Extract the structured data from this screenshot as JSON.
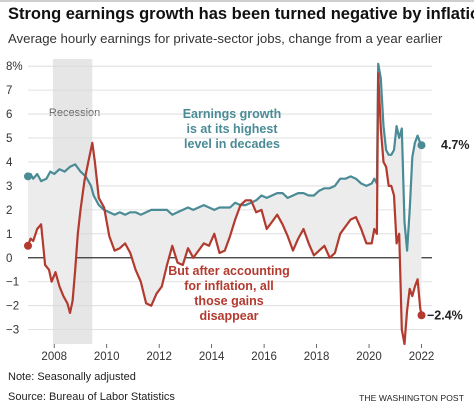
{
  "header": {
    "title": "Strong earnings growth has been turned negative by inflation",
    "subtitle": "Average hourly earnings for private-sector jobs, change from a year earlier"
  },
  "footer": {
    "note": "Note: Seasonally adjusted",
    "source": "Source: Bureau of Labor Statistics",
    "brand": "THE WASHINGTON POST"
  },
  "chart_data": {
    "type": "line",
    "title": "Strong earnings growth has been turned negative by inflation",
    "subtitle": "Average hourly earnings for private-sector jobs, change from a year earlier",
    "xlabel": "",
    "ylabel": "",
    "xlim": [
      2007.0,
      2022.4
    ],
    "ylim": [
      -3.6,
      8.3
    ],
    "y_ticks": [
      -3,
      -2,
      -1,
      0,
      1,
      2,
      3,
      4,
      5,
      6,
      7,
      8
    ],
    "y_tick_labels": [
      "−3",
      "−2",
      "−1",
      "0",
      "1",
      "2",
      "3",
      "4",
      "5",
      "6",
      "7",
      "8%"
    ],
    "x_ticks": [
      2008,
      2010,
      2012,
      2014,
      2016,
      2018,
      2020,
      2022
    ],
    "x_tick_labels": [
      "2008",
      "2010",
      "2012",
      "2014",
      "2016",
      "2018",
      "2020",
      "2022"
    ],
    "grid": true,
    "colors": {
      "nominal": "#4a8b96",
      "real": "#b23a2e",
      "recession": "#e6e6e6",
      "fill": "#ececec",
      "grid": "#d8d8d8",
      "zero_line": "#333333"
    },
    "recession": {
      "label": "Recession",
      "start": 2007.95,
      "end": 2009.45
    },
    "annotations": [
      {
        "id": "nominal",
        "lines": [
          "Earnings growth",
          "is at its highest",
          "level in decades"
        ]
      },
      {
        "id": "real",
        "lines": [
          "But after accounting",
          "for inflation, all",
          "those gains",
          "disappear"
        ]
      }
    ],
    "end_labels": {
      "nominal": "4.7%",
      "real": "−2.4%"
    },
    "series": [
      {
        "key": "nominal",
        "x": [
          2007.0,
          2007.1,
          2007.2,
          2007.35,
          2007.5,
          2007.7,
          2007.85,
          2008.0,
          2008.2,
          2008.4,
          2008.6,
          2008.8,
          2009.0,
          2009.2,
          2009.4,
          2009.5,
          2009.7,
          2009.9,
          2010.1,
          2010.3,
          2010.5,
          2010.7,
          2010.9,
          2011.1,
          2011.3,
          2011.5,
          2011.7,
          2011.9,
          2012.1,
          2012.3,
          2012.5,
          2012.7,
          2012.9,
          2013.1,
          2013.3,
          2013.5,
          2013.7,
          2013.9,
          2014.1,
          2014.3,
          2014.5,
          2014.7,
          2014.9,
          2015.1,
          2015.3,
          2015.5,
          2015.7,
          2015.9,
          2016.1,
          2016.3,
          2016.5,
          2016.7,
          2016.9,
          2017.1,
          2017.3,
          2017.5,
          2017.7,
          2017.9,
          2018.1,
          2018.3,
          2018.5,
          2018.7,
          2018.9,
          2019.1,
          2019.3,
          2019.5,
          2019.7,
          2019.9,
          2020.1,
          2020.2,
          2020.3,
          2020.35,
          2020.45,
          2020.55,
          2020.65,
          2020.75,
          2020.85,
          2020.95,
          2021.05,
          2021.15,
          2021.25,
          2021.35,
          2021.45,
          2021.55,
          2021.65,
          2021.75,
          2021.85,
          2021.95,
          2022.0
        ],
        "y": [
          3.4,
          3.5,
          3.3,
          3.5,
          3.2,
          3.3,
          3.6,
          3.5,
          3.7,
          3.6,
          3.8,
          3.9,
          3.6,
          3.4,
          3.0,
          2.6,
          2.2,
          2.0,
          1.9,
          1.8,
          1.9,
          1.8,
          1.9,
          1.9,
          1.8,
          1.9,
          2.0,
          2.0,
          2.0,
          2.0,
          1.8,
          1.9,
          2.0,
          2.1,
          2.0,
          2.1,
          2.2,
          2.1,
          2.0,
          2.1,
          2.1,
          2.1,
          2.3,
          2.2,
          2.2,
          2.3,
          2.4,
          2.6,
          2.5,
          2.6,
          2.7,
          2.7,
          2.5,
          2.6,
          2.7,
          2.7,
          2.6,
          2.6,
          2.8,
          2.9,
          2.9,
          3.0,
          3.3,
          3.3,
          3.4,
          3.3,
          3.1,
          3.0,
          3.1,
          3.3,
          3.1,
          8.1,
          7.5,
          5.5,
          4.5,
          4.3,
          4.3,
          4.5,
          5.5,
          5.0,
          5.4,
          1.5,
          0.3,
          2.0,
          4.2,
          4.8,
          5.1,
          4.8,
          4.7
        ]
      },
      {
        "key": "real",
        "x": [
          2007.0,
          2007.1,
          2007.2,
          2007.35,
          2007.5,
          2007.65,
          2007.8,
          2007.9,
          2008.05,
          2008.2,
          2008.35,
          2008.5,
          2008.6,
          2008.7,
          2008.8,
          2008.9,
          2009.0,
          2009.15,
          2009.3,
          2009.45,
          2009.55,
          2009.7,
          2009.9,
          2010.1,
          2010.3,
          2010.5,
          2010.7,
          2010.9,
          2011.1,
          2011.3,
          2011.5,
          2011.7,
          2011.9,
          2012.1,
          2012.3,
          2012.5,
          2012.7,
          2012.9,
          2013.1,
          2013.3,
          2013.5,
          2013.7,
          2013.9,
          2014.1,
          2014.3,
          2014.5,
          2014.7,
          2014.9,
          2015.1,
          2015.3,
          2015.5,
          2015.7,
          2015.9,
          2016.1,
          2016.3,
          2016.5,
          2016.7,
          2016.9,
          2017.1,
          2017.3,
          2017.5,
          2017.7,
          2017.9,
          2018.1,
          2018.3,
          2018.5,
          2018.7,
          2018.9,
          2019.1,
          2019.3,
          2019.5,
          2019.7,
          2019.9,
          2020.1,
          2020.2,
          2020.3,
          2020.35,
          2020.45,
          2020.55,
          2020.65,
          2020.75,
          2020.85,
          2020.95,
          2021.05,
          2021.15,
          2021.25,
          2021.35,
          2021.45,
          2021.55,
          2021.65,
          2021.75,
          2021.85,
          2021.95,
          2022.0
        ],
        "y": [
          0.5,
          0.8,
          0.7,
          1.2,
          1.4,
          -0.3,
          -0.5,
          -1.0,
          -0.6,
          -1.2,
          -1.6,
          -1.9,
          -2.3,
          -1.8,
          -0.5,
          1.0,
          2.0,
          3.2,
          4.0,
          4.8,
          4.0,
          2.5,
          2.1,
          0.9,
          0.3,
          0.4,
          0.6,
          0.2,
          -0.5,
          -1.0,
          -1.9,
          -2.0,
          -1.5,
          -1.2,
          -0.3,
          0.5,
          -0.2,
          -0.3,
          0.4,
          0.0,
          0.3,
          0.6,
          0.5,
          1.0,
          0.2,
          0.3,
          0.9,
          1.6,
          2.2,
          2.4,
          2.4,
          1.9,
          2.0,
          1.2,
          1.5,
          1.8,
          1.4,
          0.9,
          0.3,
          0.8,
          1.2,
          0.6,
          0.1,
          0.3,
          0.5,
          0.0,
          0.2,
          1.0,
          1.3,
          1.6,
          1.7,
          1.2,
          0.6,
          0.6,
          1.2,
          1.0,
          7.7,
          5.4,
          4.0,
          3.8,
          3.0,
          3.0,
          2.6,
          0.6,
          1.0,
          -3.0,
          -3.6,
          -2.2,
          -1.3,
          -1.6,
          -1.2,
          -0.9,
          -2.1,
          -2.4
        ]
      }
    ]
  }
}
